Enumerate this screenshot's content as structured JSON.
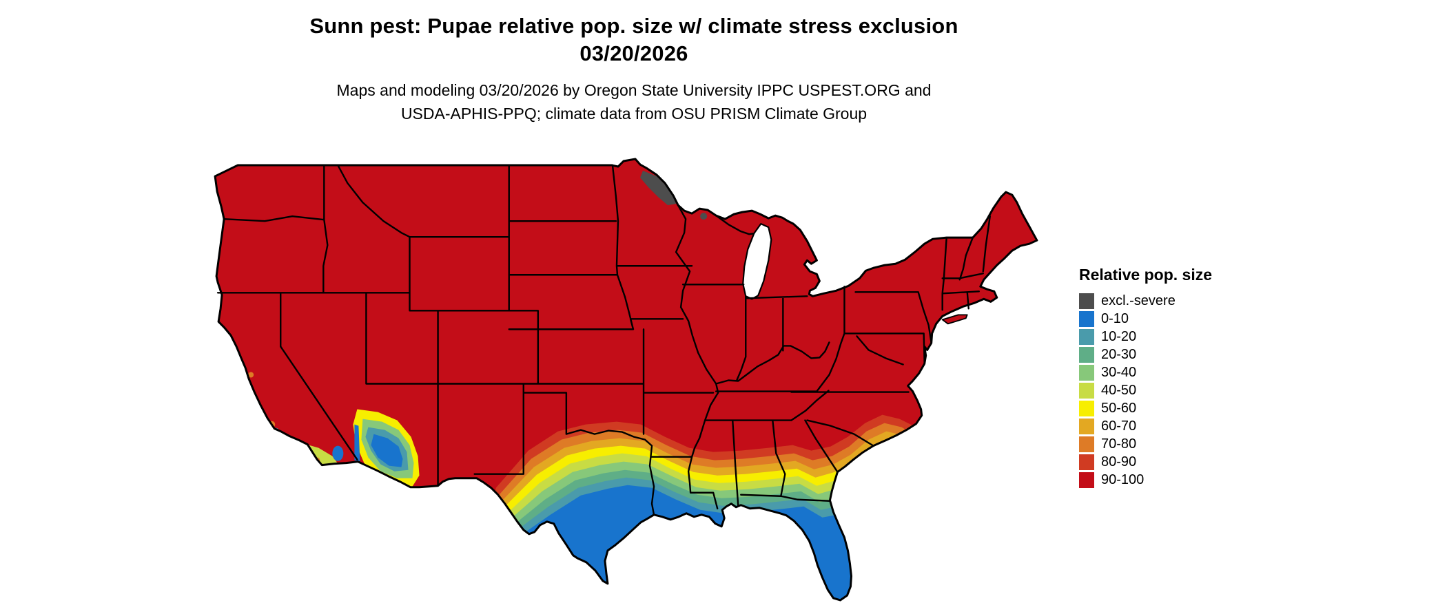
{
  "title": {
    "line1": "Sunn pest: Pupae relative pop. size w/ climate stress exclusion",
    "line2": "03/20/2026"
  },
  "subtitle": {
    "line1": "Maps and modeling 03/20/2026 by Oregon State University IPPC USPEST.ORG and",
    "line2": "USDA-APHIS-PPQ; climate data from OSU PRISM Climate Group"
  },
  "legend": {
    "title": "Relative pop. size",
    "items": [
      {
        "label": "excl.-severe",
        "color": "#4D4D4D"
      },
      {
        "label": "0-10",
        "color": "#1874CD"
      },
      {
        "label": "10-20",
        "color": "#4A9BAB"
      },
      {
        "label": "20-30",
        "color": "#5FAE87"
      },
      {
        "label": "30-40",
        "color": "#87C87A"
      },
      {
        "label": "40-50",
        "color": "#C8DC44"
      },
      {
        "label": "50-60",
        "color": "#F7EE00"
      },
      {
        "label": "60-70",
        "color": "#E3A822"
      },
      {
        "label": "70-80",
        "color": "#DE7B26"
      },
      {
        "label": "80-90",
        "color": "#D03B22"
      },
      {
        "label": "90-100",
        "color": "#C30D18"
      }
    ]
  },
  "map": {
    "area_shown": "conterminous United States with state borders",
    "dominant_category": "90-100",
    "low_population_gradient_regions": [
      "southern Texas",
      "Gulf Coast",
      "Florida peninsula",
      "southern Arizona",
      "coastal California"
    ],
    "excluded_severe_regions": [
      "northern Minnesota border",
      "northern Wisconsin spot"
    ]
  }
}
